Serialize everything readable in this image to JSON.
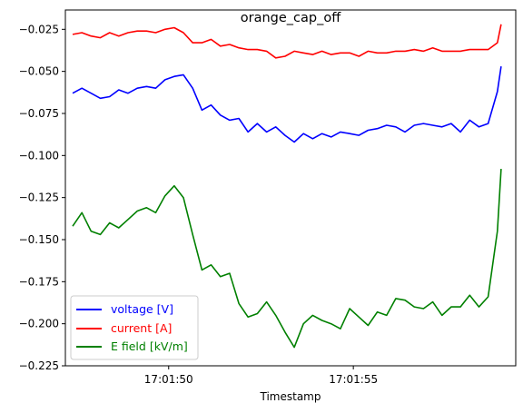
{
  "chart_data": {
    "type": "line",
    "title": "orange_cap_off",
    "xlabel": "Timestamp",
    "ylabel": "",
    "x_ticks": [
      "17:01:50",
      "17:01:55"
    ],
    "x_tick_values": [
      2.6,
      7.6
    ],
    "xlim": [
      0,
      11.8
    ],
    "y_ticks": [
      "−0.025",
      "−0.050",
      "−0.075",
      "−0.100",
      "−0.125",
      "−0.150",
      "−0.175",
      "−0.200",
      "−0.225"
    ],
    "y_tick_values": [
      -0.025,
      -0.05,
      -0.075,
      -0.1,
      -0.125,
      -0.15,
      -0.175,
      -0.2,
      -0.225
    ],
    "ylim": [
      -0.225,
      -0.0135
    ],
    "grid": false,
    "legend": "lower-left",
    "x": [
      0,
      0.25,
      0.5,
      0.75,
      1,
      1.25,
      1.5,
      1.75,
      2,
      2.25,
      2.5,
      2.75,
      3,
      3.25,
      3.5,
      3.75,
      4,
      4.25,
      4.5,
      4.75,
      5,
      5.25,
      5.5,
      5.75,
      6,
      6.25,
      6.5,
      6.75,
      7,
      7.25,
      7.5,
      7.75,
      8,
      8.25,
      8.5,
      8.75,
      9,
      9.25,
      9.5,
      9.75,
      10,
      10.25,
      10.5,
      10.75,
      11,
      11.25,
      11.5,
      11.6
    ],
    "series": [
      {
        "name": "voltage [V]",
        "color": "#0000ff",
        "values": [
          -0.063,
          -0.06,
          -0.063,
          -0.066,
          -0.065,
          -0.061,
          -0.063,
          -0.06,
          -0.059,
          -0.06,
          -0.055,
          -0.053,
          -0.052,
          -0.06,
          -0.073,
          -0.07,
          -0.076,
          -0.079,
          -0.078,
          -0.086,
          -0.081,
          -0.086,
          -0.083,
          -0.088,
          -0.092,
          -0.087,
          -0.09,
          -0.087,
          -0.089,
          -0.086,
          -0.087,
          -0.088,
          -0.085,
          -0.084,
          -0.082,
          -0.083,
          -0.086,
          -0.082,
          -0.081,
          -0.082,
          -0.083,
          -0.081,
          -0.086,
          -0.079,
          -0.083,
          -0.081,
          -0.062,
          -0.047
        ]
      },
      {
        "name": "current [A]",
        "color": "#ff0000",
        "values": [
          -0.028,
          -0.027,
          -0.029,
          -0.03,
          -0.027,
          -0.029,
          -0.027,
          -0.026,
          -0.026,
          -0.027,
          -0.025,
          -0.024,
          -0.027,
          -0.033,
          -0.033,
          -0.031,
          -0.035,
          -0.034,
          -0.036,
          -0.037,
          -0.037,
          -0.038,
          -0.042,
          -0.041,
          -0.038,
          -0.039,
          -0.04,
          -0.038,
          -0.04,
          -0.039,
          -0.039,
          -0.041,
          -0.038,
          -0.039,
          -0.039,
          -0.038,
          -0.038,
          -0.037,
          -0.038,
          -0.036,
          -0.038,
          -0.038,
          -0.038,
          -0.037,
          -0.037,
          -0.037,
          -0.033,
          -0.022
        ]
      },
      {
        "name": "E field [kV/m]",
        "color": "#008000",
        "values": [
          -0.142,
          -0.134,
          -0.145,
          -0.147,
          -0.14,
          -0.143,
          -0.138,
          -0.133,
          -0.131,
          -0.134,
          -0.124,
          -0.118,
          -0.125,
          -0.147,
          -0.168,
          -0.165,
          -0.172,
          -0.17,
          -0.188,
          -0.196,
          -0.194,
          -0.187,
          -0.195,
          -0.205,
          -0.214,
          -0.2,
          -0.195,
          -0.198,
          -0.2,
          -0.203,
          -0.191,
          -0.196,
          -0.201,
          -0.193,
          -0.195,
          -0.185,
          -0.186,
          -0.19,
          -0.191,
          -0.187,
          -0.195,
          -0.19,
          -0.19,
          -0.183,
          -0.19,
          -0.184,
          -0.145,
          -0.108
        ]
      }
    ]
  }
}
